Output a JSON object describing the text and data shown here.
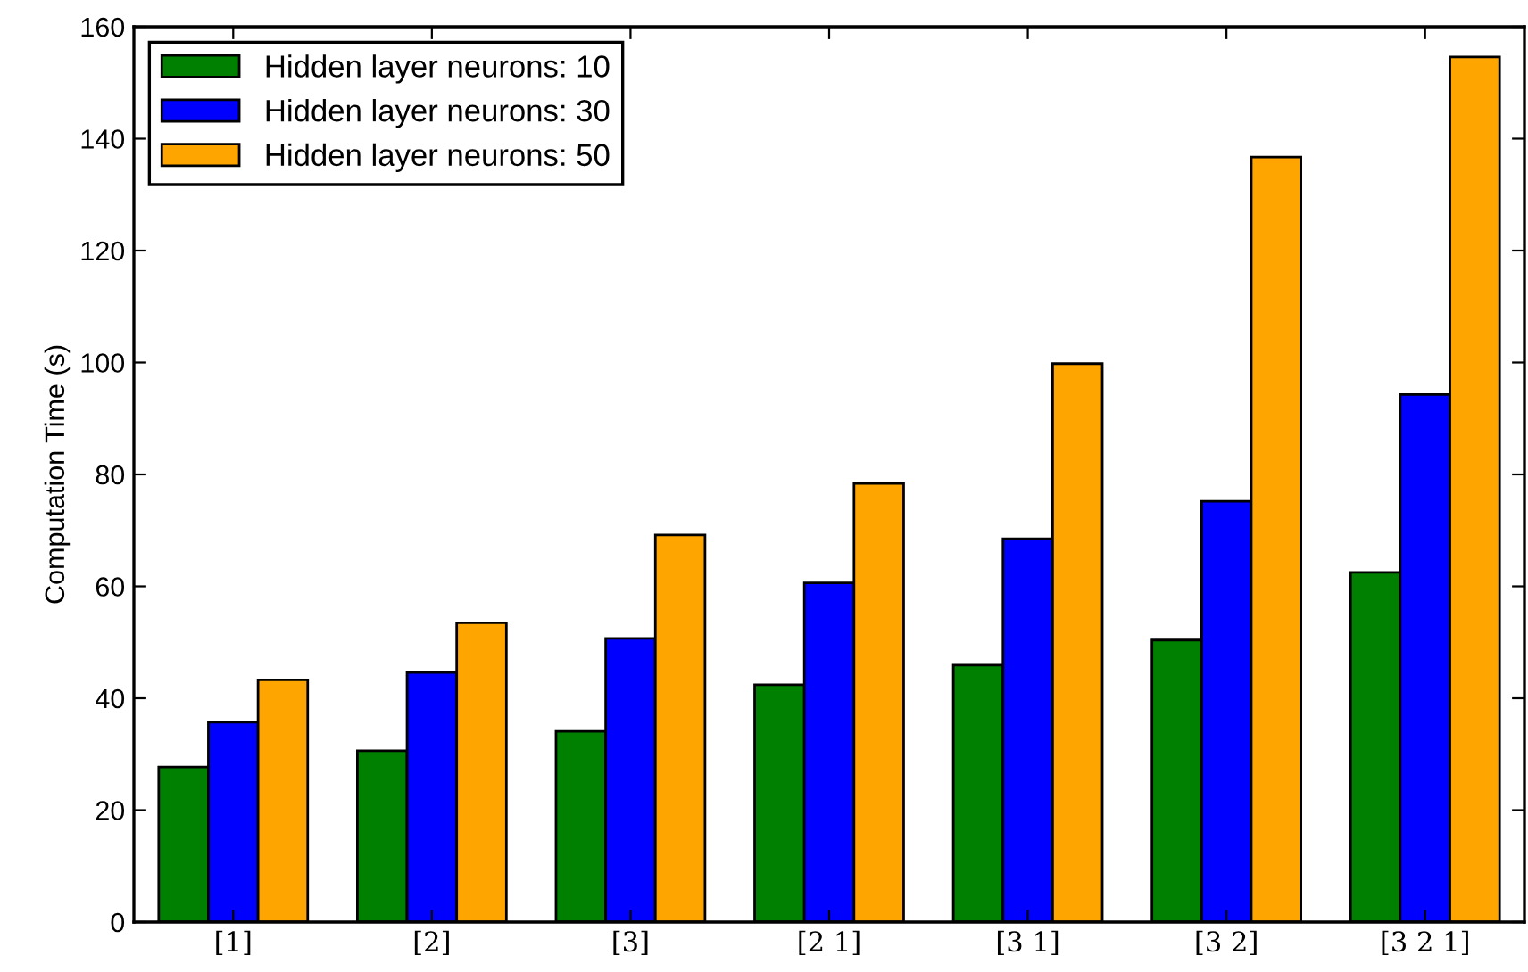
{
  "chart_data": {
    "type": "bar",
    "ylabel": "Computation Time (s)",
    "categories": [
      "[1]",
      "[2]",
      "[3]",
      "[2 1]",
      "[3 1]",
      "[3 2]",
      "[3 2 1]"
    ],
    "series": [
      {
        "name": "Hidden layer neurons: 10",
        "color": "#008000",
        "values": [
          27.7,
          30.6,
          34.1,
          42.4,
          45.9,
          50.4,
          62.5
        ]
      },
      {
        "name": "Hidden layer neurons: 30",
        "color": "#0000ff",
        "values": [
          35.7,
          44.6,
          50.7,
          60.6,
          68.5,
          75.2,
          94.3
        ]
      },
      {
        "name": "Hidden layer neurons: 50",
        "color": "#ffa500",
        "values": [
          43.3,
          53.5,
          69.2,
          78.4,
          99.8,
          136.7,
          154.6
        ]
      }
    ],
    "ylim": [
      0,
      160
    ],
    "yticks": [
      0,
      20,
      40,
      60,
      80,
      100,
      120,
      140,
      160
    ],
    "grid": false,
    "legend": "top left"
  }
}
